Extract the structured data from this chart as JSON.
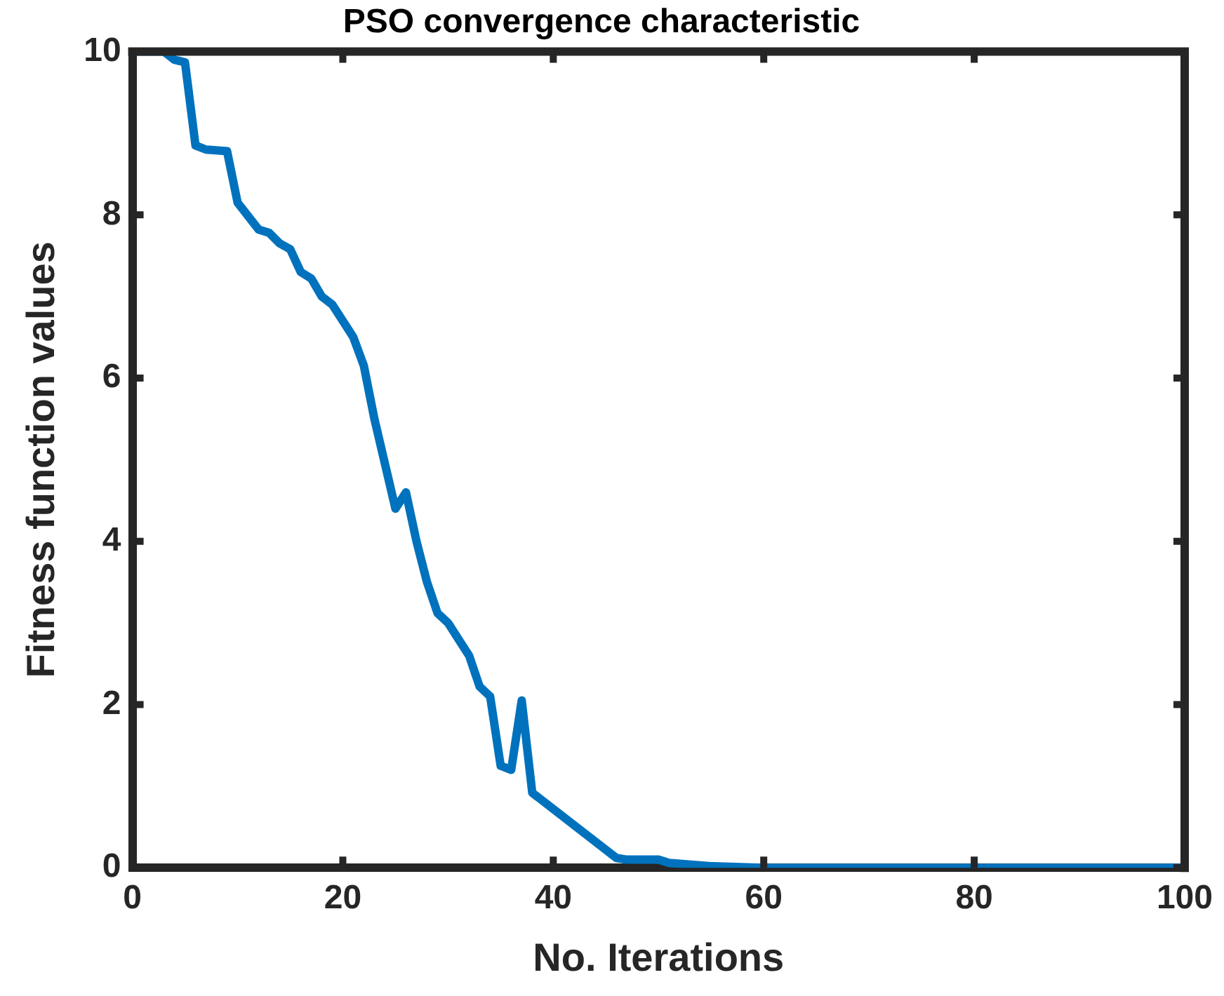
{
  "chart_data": {
    "type": "line",
    "title": "PSO convergence characteristic",
    "xlabel": "No. Iterations",
    "ylabel": "Fitness function values",
    "x": [
      0,
      3,
      4,
      5,
      6,
      7,
      9,
      10,
      12,
      13,
      14,
      15,
      16,
      17,
      18,
      19,
      20,
      21,
      22,
      23,
      24,
      25,
      26,
      27,
      28,
      29,
      30,
      31,
      32,
      33,
      34,
      35,
      36,
      37,
      38,
      46,
      47,
      50,
      51,
      55,
      60,
      100
    ],
    "series": [
      {
        "color": "#0072bd",
        "values": [
          10,
          10,
          9.9,
          9.87,
          8.85,
          8.8,
          8.78,
          8.15,
          7.82,
          7.78,
          7.65,
          7.58,
          7.3,
          7.22,
          7.0,
          6.9,
          6.7,
          6.5,
          6.15,
          5.5,
          4.95,
          4.4,
          4.6,
          4.0,
          3.5,
          3.12,
          3.0,
          2.8,
          2.6,
          2.22,
          2.1,
          1.25,
          1.2,
          2.05,
          0.92,
          0.12,
          0.1,
          0.1,
          0.06,
          0.02,
          0,
          0
        ]
      }
    ],
    "xlim": [
      0,
      100
    ],
    "xticks": [
      0,
      20,
      40,
      60,
      80,
      100
    ],
    "ylim": [
      0,
      10
    ],
    "yticks": [
      0,
      2,
      4,
      6,
      8,
      10
    ],
    "grid": false,
    "legend": false,
    "marker": "none",
    "line_style": "solid"
  }
}
